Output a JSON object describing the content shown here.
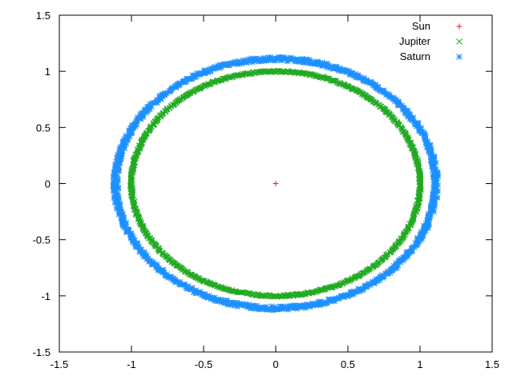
{
  "chart_data": {
    "type": "scatter",
    "title": "",
    "xlabel": "",
    "ylabel": "",
    "xlim": [
      -1.5,
      1.5
    ],
    "ylim": [
      -1.5,
      1.5
    ],
    "xticks": [
      "-1.5",
      "-1",
      "-0.5",
      "0",
      "0.5",
      "1",
      "1.5"
    ],
    "yticks": [
      "-1.5",
      "-1",
      "-0.5",
      "0",
      "0.5",
      "1",
      "1.5"
    ],
    "grid": false,
    "legend_position": "top-right",
    "series": [
      {
        "name": "Sun",
        "marker": "plus",
        "color": "#e41a1c",
        "points": [
          [
            0,
            0
          ]
        ]
      },
      {
        "name": "Jupiter",
        "marker": "cross",
        "color": "#22aa22",
        "orbit": {
          "center": [
            0,
            0
          ],
          "rx": 1.0,
          "ry": 1.0,
          "scatter": 0.01
        }
      },
      {
        "name": "Saturn",
        "marker": "star",
        "color": "#1e90ff",
        "orbit": {
          "center": [
            0,
            0
          ],
          "rx": 1.11,
          "ry": 1.11,
          "scatter": 0.02
        }
      }
    ]
  }
}
